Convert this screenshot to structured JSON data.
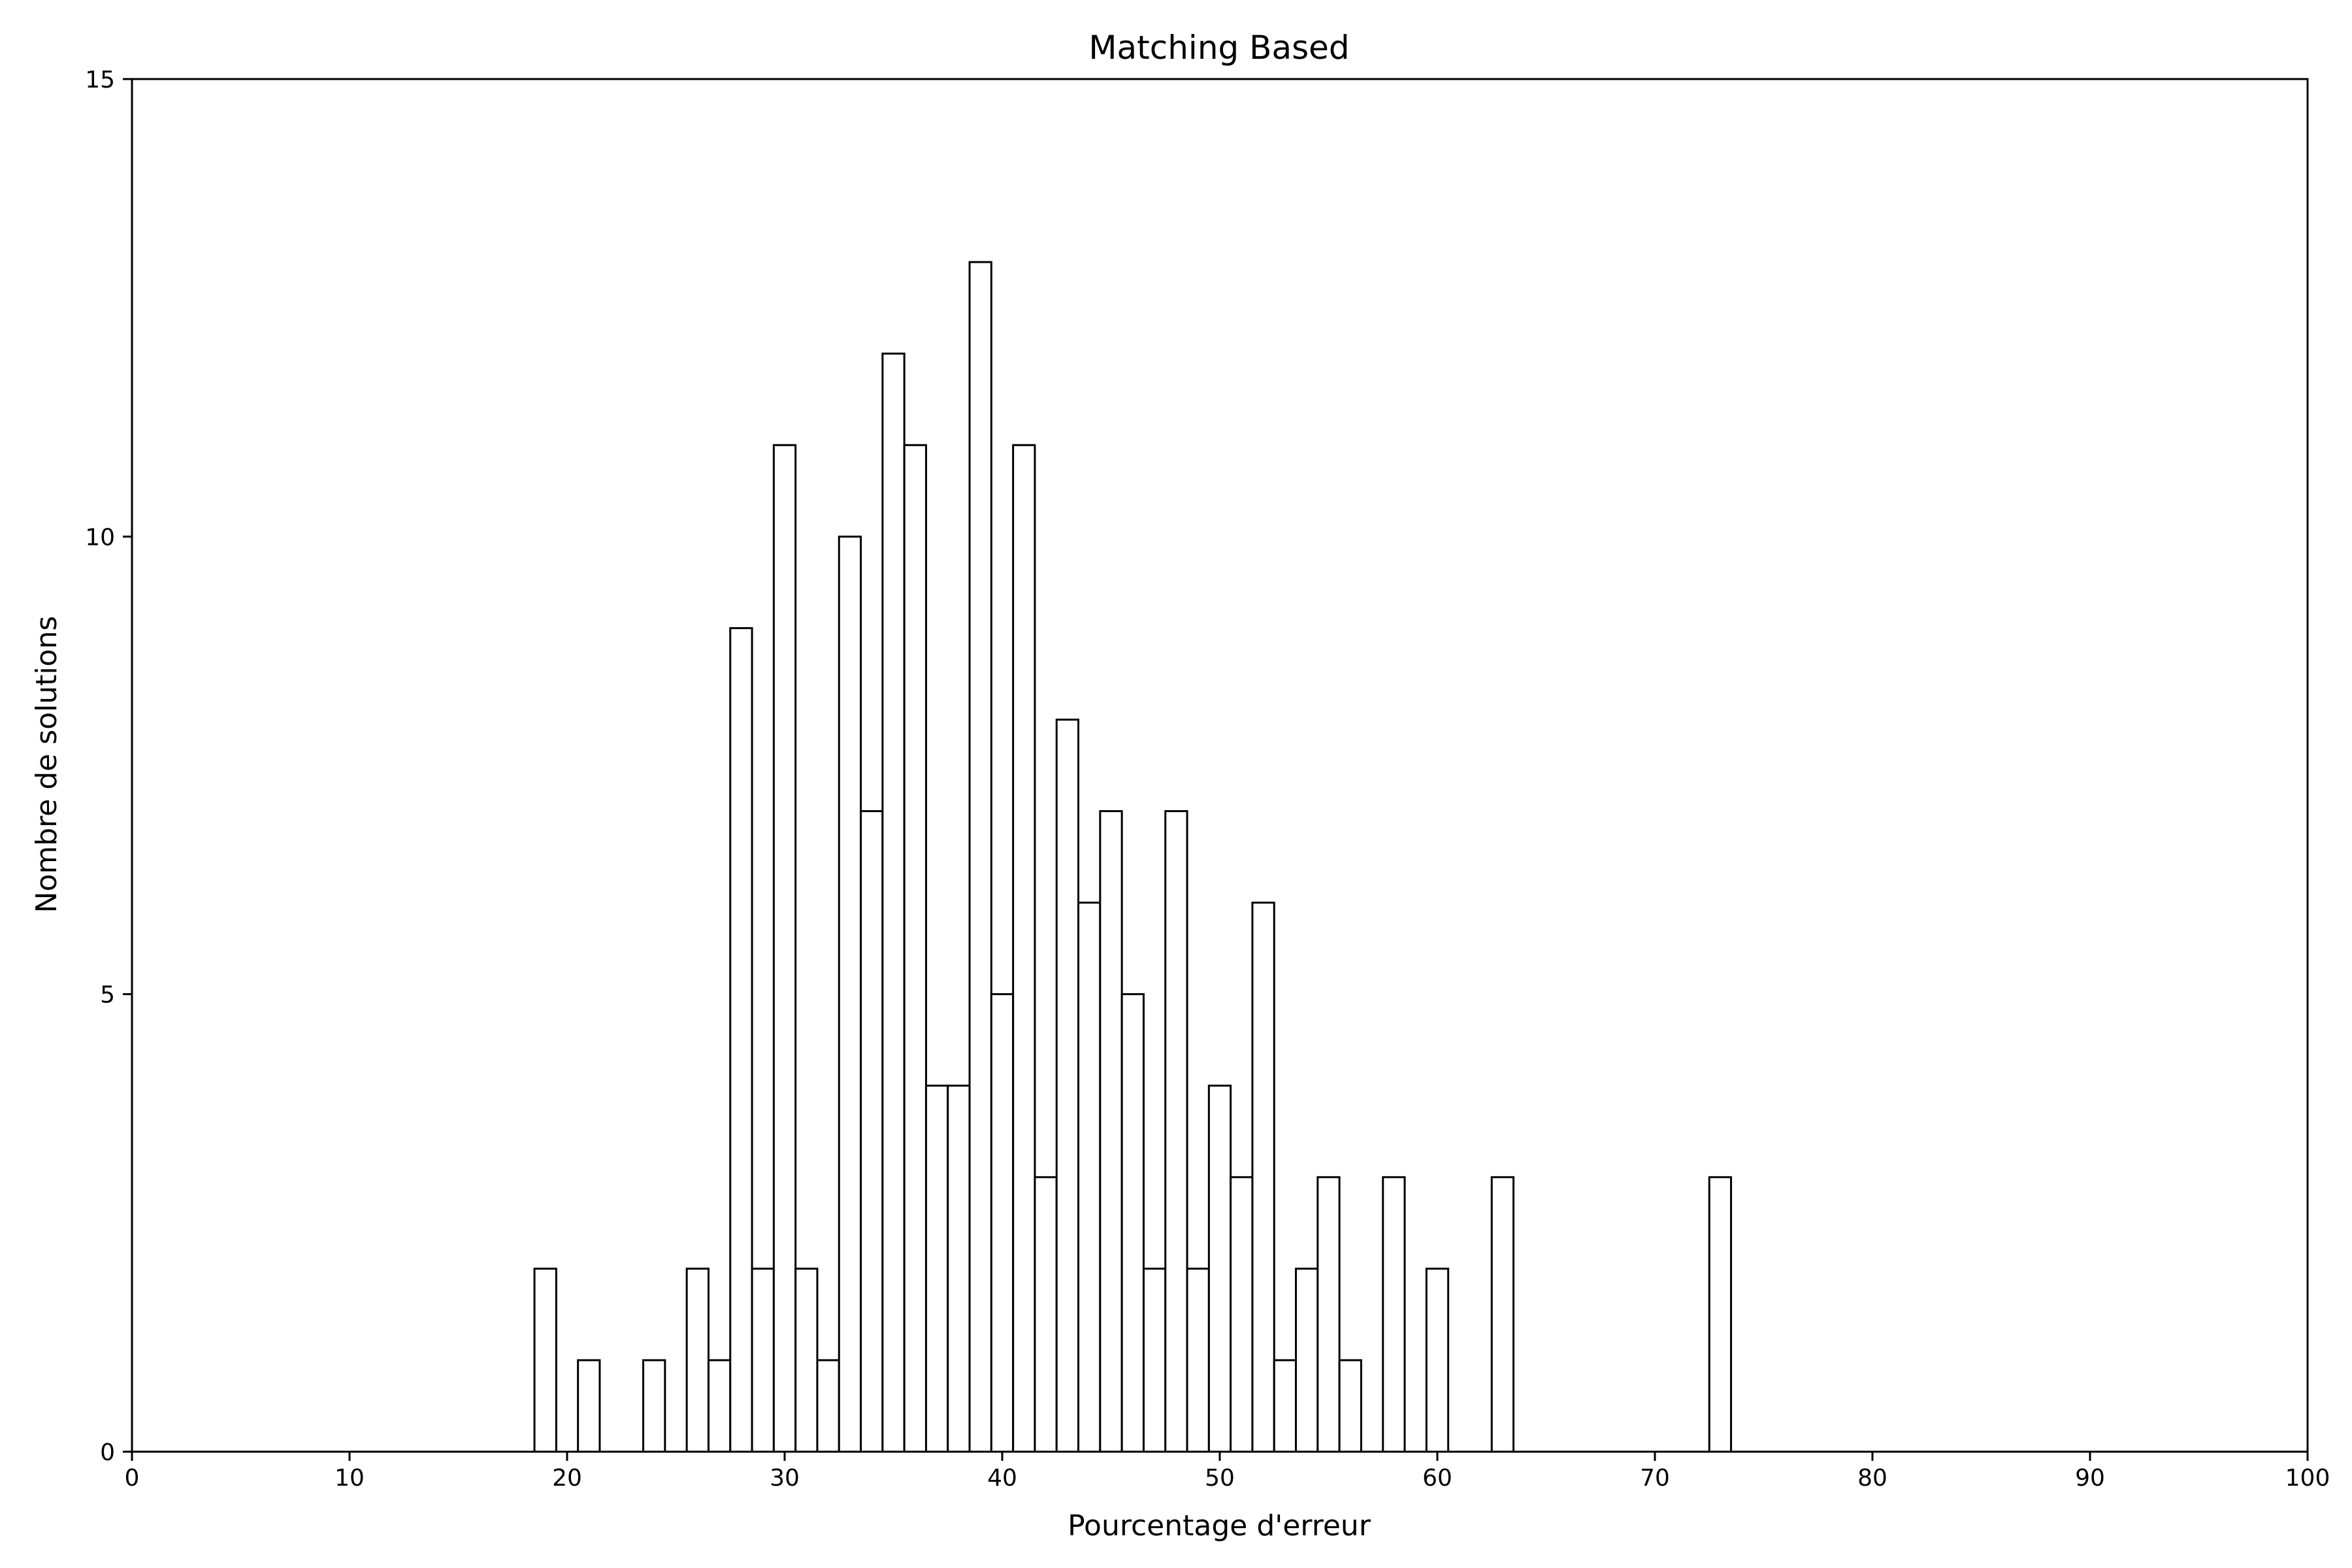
{
  "chart_data": {
    "type": "bar",
    "title": "Matching Based",
    "xlabel": "Pourcentage d'erreur",
    "ylabel": "Nombre de solutions",
    "xlim": [
      0,
      100
    ],
    "ylim": [
      0,
      15
    ],
    "xticks": [
      0,
      10,
      20,
      30,
      40,
      50,
      60,
      70,
      80,
      90,
      100
    ],
    "yticks": [
      0,
      5,
      10,
      15
    ],
    "grid": false,
    "bar_width": 1,
    "bar_fill": "#ffffff",
    "bar_edge": "#000000",
    "bins": [
      {
        "x": 19,
        "count": 2
      },
      {
        "x": 21,
        "count": 1
      },
      {
        "x": 24,
        "count": 1
      },
      {
        "x": 26,
        "count": 2
      },
      {
        "x": 27,
        "count": 1
      },
      {
        "x": 28,
        "count": 9
      },
      {
        "x": 29,
        "count": 2
      },
      {
        "x": 30,
        "count": 11
      },
      {
        "x": 31,
        "count": 2
      },
      {
        "x": 32,
        "count": 1
      },
      {
        "x": 33,
        "count": 10
      },
      {
        "x": 34,
        "count": 7
      },
      {
        "x": 35,
        "count": 12
      },
      {
        "x": 36,
        "count": 11
      },
      {
        "x": 37,
        "count": 4
      },
      {
        "x": 38,
        "count": 4
      },
      {
        "x": 39,
        "count": 13
      },
      {
        "x": 40,
        "count": 5
      },
      {
        "x": 41,
        "count": 11
      },
      {
        "x": 42,
        "count": 3
      },
      {
        "x": 43,
        "count": 8
      },
      {
        "x": 44,
        "count": 6
      },
      {
        "x": 45,
        "count": 7
      },
      {
        "x": 46,
        "count": 5
      },
      {
        "x": 47,
        "count": 2
      },
      {
        "x": 48,
        "count": 7
      },
      {
        "x": 49,
        "count": 2
      },
      {
        "x": 50,
        "count": 4
      },
      {
        "x": 51,
        "count": 3
      },
      {
        "x": 52,
        "count": 6
      },
      {
        "x": 53,
        "count": 1
      },
      {
        "x": 54,
        "count": 2
      },
      {
        "x": 55,
        "count": 3
      },
      {
        "x": 56,
        "count": 1
      },
      {
        "x": 58,
        "count": 3
      },
      {
        "x": 60,
        "count": 2
      },
      {
        "x": 63,
        "count": 3
      },
      {
        "x": 73,
        "count": 3
      }
    ]
  }
}
